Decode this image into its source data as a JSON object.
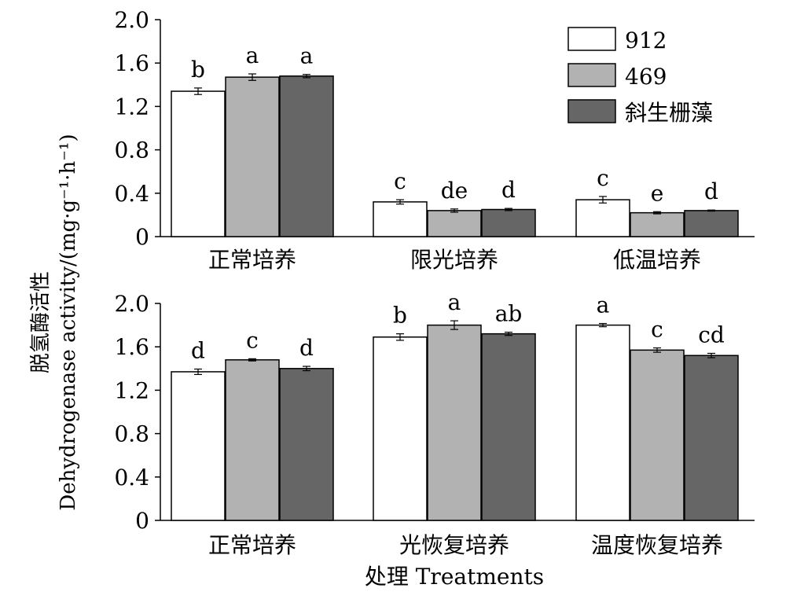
{
  "chart_data": {
    "type": "bar",
    "ylabel_cn": "脱氢酶活性",
    "ylabel_en": "Dehydrogenase activity/(mg·g⁻¹·h⁻¹)",
    "xlabel": "处理 Treatments",
    "legend": {
      "placement": "top-right",
      "entries": [
        {
          "name": "912",
          "color": "#ffffff"
        },
        {
          "name": "469",
          "color": "#b2b2b2"
        },
        {
          "name": "斜生栅藻",
          "color": "#666666"
        }
      ]
    },
    "panels": [
      {
        "categories": [
          "正常培养",
          "限光培养",
          "低温培养"
        ],
        "ylim": [
          0,
          2.0
        ],
        "yticks": [
          "0",
          "0.4",
          "0.8",
          "1.2",
          "1.6",
          "2.0"
        ],
        "series": [
          {
            "name": "912",
            "values": [
              1.34,
              0.32,
              0.34
            ],
            "errors": [
              0.03,
              0.02,
              0.03
            ],
            "labels": [
              "b",
              "c",
              "c"
            ]
          },
          {
            "name": "469",
            "values": [
              1.47,
              0.24,
              0.22
            ],
            "errors": [
              0.03,
              0.015,
              0.01
            ],
            "labels": [
              "a",
              "de",
              "e"
            ]
          },
          {
            "name": "斜生栅藻",
            "values": [
              1.48,
              0.25,
              0.24
            ],
            "errors": [
              0.015,
              0.01,
              0.005
            ],
            "labels": [
              "a",
              "d",
              "d"
            ]
          }
        ]
      },
      {
        "categories": [
          "正常培养",
          "光恢复培养",
          "温度恢复培养"
        ],
        "ylim": [
          0,
          2.0
        ],
        "yticks": [
          "0",
          "0.4",
          "0.8",
          "1.2",
          "1.6",
          "2.0"
        ],
        "series": [
          {
            "name": "912",
            "values": [
              1.37,
              1.69,
              1.8
            ],
            "errors": [
              0.025,
              0.03,
              0.015
            ],
            "labels": [
              "d",
              "b",
              "a"
            ]
          },
          {
            "name": "469",
            "values": [
              1.48,
              1.8,
              1.57
            ],
            "errors": [
              0.01,
              0.04,
              0.02
            ],
            "labels": [
              "c",
              "a",
              "c"
            ]
          },
          {
            "name": "斜生栅藻",
            "values": [
              1.4,
              1.72,
              1.52
            ],
            "errors": [
              0.02,
              0.015,
              0.02
            ],
            "labels": [
              "d",
              "ab",
              "cd"
            ]
          }
        ]
      }
    ]
  }
}
